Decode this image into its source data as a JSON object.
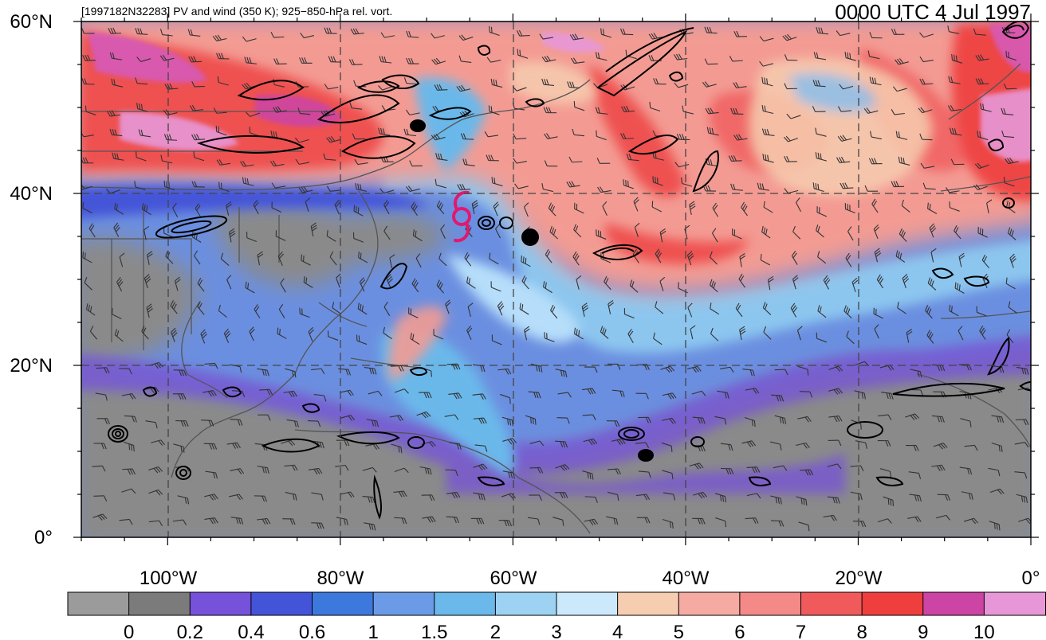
{
  "header": {
    "title_left": "[1997182N32283] PV and wind (350 K); 925−850-hPa rel. vort.",
    "title_right": "0000 UTC 4 Jul 1997"
  },
  "map": {
    "projection": "cylindrical equidistant",
    "lon_range": [
      -110,
      0
    ],
    "lat_range": [
      0,
      60
    ],
    "lat_ticks": [
      "0°",
      "20°N",
      "40°N",
      "60°N"
    ],
    "lon_ticks": [
      "100°W",
      "80°W",
      "60°W",
      "40°W",
      "20°W",
      "0°"
    ],
    "gridlines": "dashed",
    "storm_marker": {
      "symbol": "tropical-cyclone-icon",
      "lon": -65.5,
      "lat": 36.5,
      "color": "#e0196f"
    }
  },
  "colorbar": {
    "colors": [
      "#9b9b9b",
      "#7b7b7b",
      "#7651d9",
      "#4454d8",
      "#3d79dd",
      "#6b9be6",
      "#6bb8ea",
      "#9dd2f2",
      "#cbe9fa",
      "#f6cdb0",
      "#f5aaa2",
      "#f38a88",
      "#f05a5a",
      "#ee3e3e",
      "#cc44a4",
      "#e797d8"
    ],
    "labels": [
      "0",
      "0.2",
      "0.4",
      "0.6",
      "1",
      "1.5",
      "2",
      "3",
      "4",
      "5",
      "6",
      "7",
      "8",
      "9",
      "10"
    ]
  }
}
